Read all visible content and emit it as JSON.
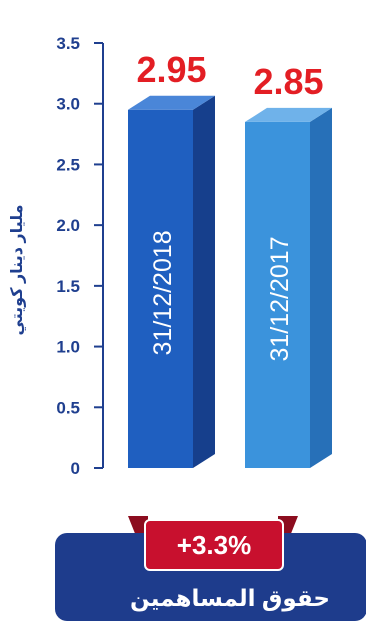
{
  "chart_data": {
    "type": "bar",
    "categories": [
      "31/12/2018",
      "31/12/2017"
    ],
    "values": [
      2.95,
      2.85
    ],
    "value_labels": [
      "2.95",
      "2.85"
    ],
    "ylabel": "مليار دينار كويتي",
    "ylim": [
      0,
      3.5
    ],
    "yticks": [
      "0",
      "0.5",
      "1.0",
      "1.5",
      "2.0",
      "2.5",
      "3.0",
      "3.5"
    ],
    "grid": false
  },
  "badge": {
    "text": "+3.3%"
  },
  "footer": {
    "title": "حقوق المساهمين"
  },
  "colors": {
    "axis": "#1f3f8f",
    "value_label": "#e31e24",
    "bar_2018_front": "#1f5fc0",
    "bar_2018_side": "#163f8c",
    "bar_2018_top": "#4a86d8",
    "bar_2017_front": "#3b93dc",
    "bar_2017_side": "#2770b8",
    "bar_2017_top": "#6fb2ea",
    "badge": "#c8102e",
    "footer_bg": "#1e3c8c",
    "footer_text": "#ffffff"
  }
}
